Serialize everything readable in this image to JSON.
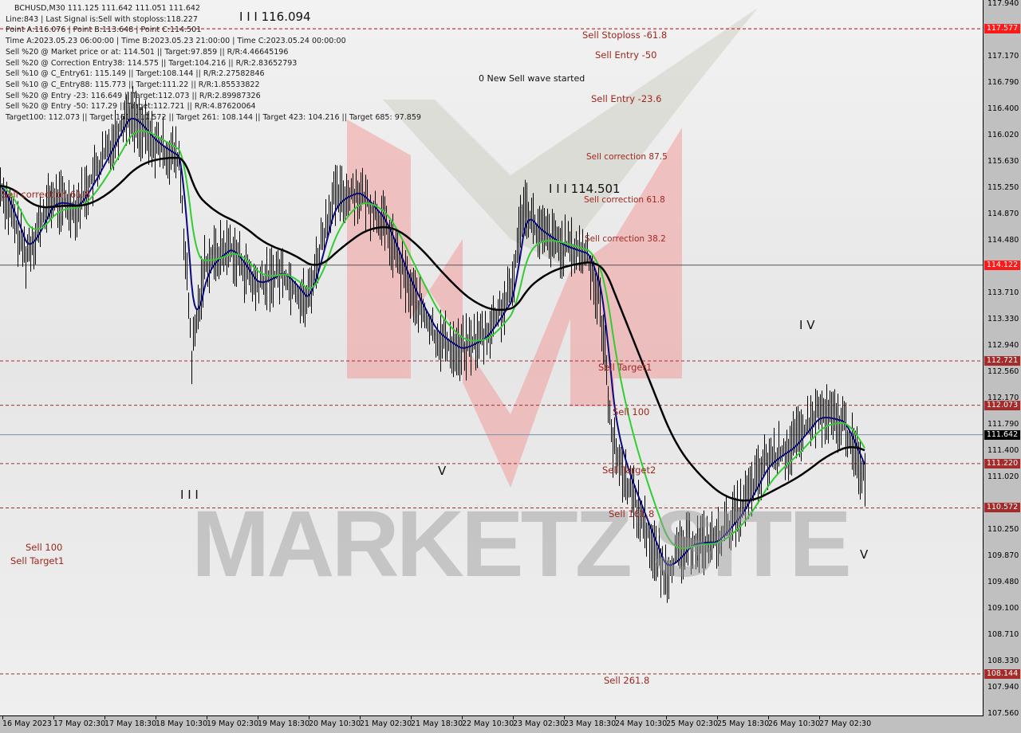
{
  "header": {
    "symbol_line": "BCHUSD,M30  111.125 111.642 111.051 111.642",
    "lines": [
      "Line:843 | Last Signal is:Sell with stoploss:118.227",
      "Point A:116.076 | Point B:113.648 | Point C:114.501",
      "Time A:2023.05.23 06:00:00 | Time B:2023.05.23 21:00:00 | Time C:2023.05.24 00:00:00",
      "Sell %20 @ Market price or at: 114.501 || Target:97.859 || R/R:4.46645196",
      "Sell %20 @ Correction Entry38: 114.575 || Target:104.216 || R/R:2.83652793",
      "Sell %10 @ C_Entry61: 115.149 || Target:108.144 || R/R:2.27582846",
      "Sell %10 @ C_Entry88: 115.773 || Target:111.22 || R/R:1.85533822",
      "Sell %20 @ Entry -23: 116.649 || Target:112.073 || R/R:2.89987326",
      "Sell %20 @ Entry -50: 117.29 || Target:112.721 || R/R:4.87620064",
      "Target100: 112.073 || Target 161: 110.572 || Target 261: 108.144 || Target 423: 104.216 || Target 685: 97.859"
    ]
  },
  "watermark": "MARKETZ SITE",
  "chart_data": {
    "type": "candlestick",
    "title": "BCHUSD,M30",
    "ylim": [
      107.56,
      117.94
    ],
    "y_ticks": [
      "117.940",
      "117.170",
      "116.790",
      "116.400",
      "116.020",
      "115.630",
      "115.250",
      "114.870",
      "114.480",
      "113.710",
      "113.330",
      "112.940",
      "112.560",
      "112.170",
      "111.790",
      "111.400",
      "111.020",
      "110.250",
      "109.870",
      "109.480",
      "109.100",
      "108.710",
      "108.330",
      "107.940",
      "107.560"
    ],
    "x_ticks": [
      "16 May 2023",
      "17 May 02:30",
      "17 May 18:30",
      "18 May 10:30",
      "19 May 02:30",
      "19 May 18:30",
      "20 May 10:30",
      "21 May 02:30",
      "21 May 18:30",
      "22 May 10:30",
      "23 May 02:30",
      "23 May 18:30",
      "24 May 10:30",
      "25 May 02:30",
      "25 May 18:30",
      "26 May 10:30",
      "27 May 02:30"
    ],
    "x_start": "2023-05-16T10:30",
    "price_path": [
      [
        "2023-05-16T10:30",
        115.28
      ],
      [
        "2023-05-16T18:30",
        114.27
      ],
      [
        "2023-05-17T02:30",
        115.09
      ],
      [
        "2023-05-17T10:30",
        114.97
      ],
      [
        "2023-05-17T18:30",
        115.67
      ],
      [
        "2023-05-18T02:30",
        116.37
      ],
      [
        "2023-05-18T10:30",
        115.9
      ],
      [
        "2023-05-18T18:30",
        115.67
      ],
      [
        "2023-05-18T22:30",
        112.76
      ],
      [
        "2023-05-19T02:30",
        114.15
      ],
      [
        "2023-05-19T10:30",
        114.39
      ],
      [
        "2023-05-19T18:30",
        113.8
      ],
      [
        "2023-05-20T02:30",
        114.04
      ],
      [
        "2023-05-20T10:30",
        113.57
      ],
      [
        "2023-05-20T18:30",
        115.09
      ],
      [
        "2023-05-21T02:30",
        115.2
      ],
      [
        "2023-05-21T10:30",
        114.74
      ],
      [
        "2023-05-21T18:30",
        113.8
      ],
      [
        "2023-05-22T02:30",
        113.1
      ],
      [
        "2023-05-22T10:30",
        112.87
      ],
      [
        "2023-05-22T18:30",
        113.1
      ],
      [
        "2023-05-23T02:30",
        113.69
      ],
      [
        "2023-05-23T06:30",
        115.09
      ],
      [
        "2023-05-23T10:30",
        114.62
      ],
      [
        "2023-05-23T18:30",
        114.39
      ],
      [
        "2023-05-24T02:30",
        114.27
      ],
      [
        "2023-05-24T06:30",
        113.57
      ],
      [
        "2023-05-24T10:30",
        111.47
      ],
      [
        "2023-05-24T18:30",
        110.54
      ],
      [
        "2023-05-24T22:30",
        110.07
      ],
      [
        "2023-05-25T02:30",
        109.61
      ],
      [
        "2023-05-25T10:30",
        110.07
      ],
      [
        "2023-05-25T18:30",
        110.07
      ],
      [
        "2023-05-26T02:30",
        110.54
      ],
      [
        "2023-05-26T10:30",
        111.24
      ],
      [
        "2023-05-26T18:30",
        111.47
      ],
      [
        "2023-05-27T02:30",
        111.94
      ],
      [
        "2023-05-27T10:30",
        111.82
      ],
      [
        "2023-05-27T17:30",
        111.01
      ]
    ],
    "series": [
      {
        "color": "#0a0a80",
        "period": 8
      },
      {
        "color": "#33cc33",
        "period": 22
      },
      {
        "color": "#000000",
        "period": 80
      }
    ],
    "levels": [
      {
        "price": 117.577,
        "label": "117.577",
        "style": "dashed",
        "color": "#cc0000",
        "tag": "#ff1a1a"
      },
      {
        "price": 114.122,
        "label": "114.122",
        "style": "solid",
        "color": "#555555",
        "tag": "#ff1a1a"
      },
      {
        "price": 112.721,
        "label": "112.721",
        "style": "dashed",
        "color": "#a03030",
        "tag": "#a52a2a"
      },
      {
        "price": 112.073,
        "label": "112.073",
        "style": "dashed",
        "color": "#a03030",
        "tag": "#a52a2a"
      },
      {
        "price": 111.642,
        "label": "111.642",
        "style": "solid",
        "color": "#7a8fa8",
        "tag": "#000000"
      },
      {
        "price": 111.22,
        "label": "111.220",
        "style": "dashed",
        "color": "#a03030",
        "tag": "#a52a2a"
      },
      {
        "price": 110.572,
        "label": "110.572",
        "style": "dashed",
        "color": "#a03030",
        "tag": "#a52a2a"
      },
      {
        "price": 108.144,
        "label": "108.144",
        "style": "dashed",
        "color": "#a03030",
        "tag": "#a52a2a"
      }
    ],
    "annotations": [
      "Sell Stoploss -61.8",
      "Sell Entry -50",
      "Sell Entry -23.6",
      "Sell correction 87.5",
      "Sell correction 61.8",
      "Sell correction 38.2",
      "Sell Target1",
      "Sell 100",
      "Sell Target2",
      "Sell 161.8",
      "Sell 261.8",
      "Sell 100",
      "Sell Target1",
      "Sell correction 61.8"
    ],
    "waves": [
      "0 New Sell wave started",
      "I I I 114.501",
      "I I I",
      "V",
      "I V",
      "V",
      "I I I 116.094"
    ]
  }
}
